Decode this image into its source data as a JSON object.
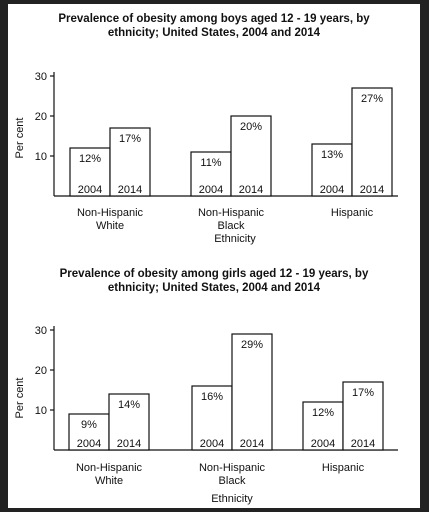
{
  "chart_data": [
    {
      "type": "bar",
      "title": "Prevalence of obesity among boys aged 12 - 19 years, by ethnicity; United States, 2004 and 2014",
      "title_lines": [
        "Prevalence of obesity among boys aged 12 - 19 years, by",
        "ethnicity; United States, 2004 and 2014"
      ],
      "xlabel": "Ethnicity",
      "ylabel": "Per cent",
      "ylim": [
        0,
        30
      ],
      "yticks": [
        "10",
        "20",
        "30"
      ],
      "categories": [
        [
          "Non-Hispanic",
          "White"
        ],
        [
          "Non-Hispanic",
          "Black"
        ],
        [
          "Hispanic"
        ]
      ],
      "series": [
        {
          "name": "2004",
          "values": [
            12,
            11,
            13
          ],
          "labels": [
            "12%",
            "11%",
            "13%"
          ]
        },
        {
          "name": "2014",
          "values": [
            17,
            20,
            27
          ],
          "labels": [
            "17%",
            "20%",
            "27%"
          ]
        }
      ],
      "grid": false
    },
    {
      "type": "bar",
      "title": "Prevalence of obesity among girls aged 12 - 19 years, by ethnicity; United States, 2004 and 2014",
      "title_lines": [
        "Prevalence of obesity among girls aged 12 - 19 years, by",
        "ethnicity; United States, 2004 and 2014"
      ],
      "xlabel": "Ethnicity",
      "ylabel": "Per cent",
      "ylim": [
        0,
        30
      ],
      "yticks": [
        "10",
        "20",
        "30"
      ],
      "categories": [
        [
          "Non-Hispanic",
          "White"
        ],
        [
          "Non-Hispanic",
          "Black"
        ],
        [
          "Hispanic"
        ]
      ],
      "series": [
        {
          "name": "2004",
          "values": [
            9,
            16,
            12
          ],
          "labels": [
            "9%",
            "16%",
            "12%"
          ]
        },
        {
          "name": "2014",
          "values": [
            14,
            29,
            17
          ],
          "labels": [
            "14%",
            "29%",
            "17%"
          ]
        }
      ],
      "grid": false
    }
  ],
  "style": {
    "background": "#222222",
    "paper": "#ffffff",
    "ink": "#111111"
  }
}
